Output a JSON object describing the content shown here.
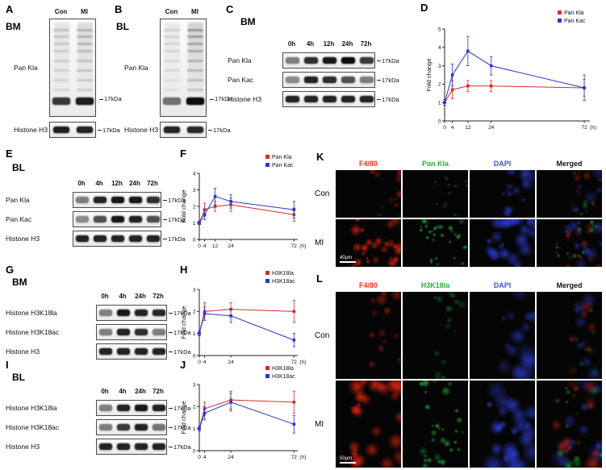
{
  "blots": {
    "A": {
      "letter": "A",
      "tissue": "BM",
      "layout": "tall",
      "lanes": [
        "Con",
        "MI"
      ],
      "smear": [
        0.55,
        0.75
      ],
      "rows": [
        {
          "label": "Pan Kla",
          "marker": "17kDa",
          "bands": [
            0.8,
            0.92
          ]
        },
        {
          "label": "Histone H3",
          "marker": "17kDa",
          "bands": [
            0.92,
            0.9
          ]
        }
      ]
    },
    "B": {
      "letter": "B",
      "tissue": "BL",
      "layout": "tall",
      "lanes": [
        "Con",
        "MI"
      ],
      "smear": [
        0.4,
        1.0
      ],
      "rows": [
        {
          "label": "Pan Kla",
          "marker": "17kDa",
          "bands": [
            0.55,
            1.0
          ]
        },
        {
          "label": "Histone H3",
          "marker": "17kDa",
          "bands": [
            0.9,
            0.88
          ]
        }
      ]
    },
    "C": {
      "letter": "C",
      "tissue": "BM",
      "layout": "stack",
      "lanes": [
        "0h",
        "4h",
        "12h",
        "24h",
        "72h"
      ],
      "rows": [
        {
          "label": "Pan Kla",
          "marker": "17kDa",
          "bands": [
            0.5,
            0.85,
            0.95,
            1,
            0.8
          ]
        },
        {
          "label": "Pan Kac",
          "marker": "17kDa",
          "bands": [
            0.45,
            0.9,
            0.85,
            0.7,
            0.5
          ]
        },
        {
          "label": "Histone H3",
          "marker": "17kDa",
          "bands": [
            0.9,
            0.9,
            0.9,
            0.9,
            0.9
          ]
        }
      ]
    },
    "E": {
      "letter": "E",
      "tissue": "BL",
      "layout": "stack",
      "lanes": [
        "0h",
        "4h",
        "12h",
        "24h",
        "72h"
      ],
      "rows": [
        {
          "label": "Pan Kla",
          "marker": "17kDa",
          "bands": [
            0.5,
            0.9,
            0.95,
            0.95,
            0.85
          ]
        },
        {
          "label": "Pan Kac",
          "marker": "17kDa",
          "bands": [
            0.45,
            0.7,
            0.95,
            0.9,
            0.7
          ]
        },
        {
          "label": "Histone H3",
          "marker": "17kDa",
          "bands": [
            0.9,
            0.9,
            0.9,
            0.9,
            0.9
          ]
        }
      ]
    },
    "G": {
      "letter": "G",
      "tissue": "BM",
      "layout": "stack",
      "lanes": [
        "0h",
        "4h",
        "24h",
        "72h"
      ],
      "rows": [
        {
          "label": "Histone H3K18la",
          "marker": "17kDa",
          "bands": [
            0.5,
            0.95,
            0.9,
            0.88
          ]
        },
        {
          "label": "Histone H3K18ac",
          "marker": "17kDa",
          "bands": [
            0.5,
            0.9,
            0.85,
            0.5
          ]
        },
        {
          "label": "Histone H3",
          "marker": "17kDa",
          "bands": [
            0.9,
            0.9,
            0.9,
            0.9
          ]
        }
      ]
    },
    "I": {
      "letter": "I",
      "tissue": "BL",
      "layout": "stack",
      "lanes": [
        "0h",
        "4h",
        "24h",
        "72h"
      ],
      "rows": [
        {
          "label": "Histone H3K18la",
          "marker": "17kDa",
          "bands": [
            0.5,
            0.9,
            0.95,
            0.9
          ]
        },
        {
          "label": "Histone H3K18ac",
          "marker": "17kDa",
          "bands": [
            0.5,
            0.8,
            0.9,
            0.55
          ]
        },
        {
          "label": "Histone H3",
          "marker": "17kDa",
          "bands": [
            0.9,
            0.9,
            0.9,
            0.9
          ]
        }
      ]
    }
  },
  "chart_data": {
    "D": {
      "letter": "D",
      "type": "line",
      "x": [
        0,
        4,
        12,
        24,
        72
      ],
      "xlabel": "(h)",
      "ylabel": "Fold change",
      "ylim": [
        0,
        5
      ],
      "yticks": [
        0,
        1,
        2,
        3,
        4,
        5
      ],
      "legend_position": "top-right",
      "grid": false,
      "series": [
        {
          "name": "Pan Kla",
          "color": "#d92b2b",
          "values": [
            1,
            1.7,
            1.9,
            1.9,
            1.8
          ],
          "err": [
            0.15,
            0.5,
            0.3,
            0.3,
            0.45
          ]
        },
        {
          "name": "Pan Kac",
          "color": "#2936cf",
          "values": [
            1,
            2.5,
            3.8,
            3.0,
            1.8
          ],
          "err": [
            0.15,
            0.6,
            0.8,
            0.5,
            0.7
          ]
        }
      ]
    },
    "F": {
      "letter": "F",
      "type": "line",
      "x": [
        0,
        4,
        12,
        24,
        72
      ],
      "xlabel": "(h)",
      "ylabel": "Fold change",
      "ylim": [
        0,
        4
      ],
      "yticks": [
        0,
        1,
        2,
        3,
        4
      ],
      "legend_position": "top-right",
      "grid": false,
      "series": [
        {
          "name": "Pan Kla",
          "color": "#d92b2b",
          "values": [
            1,
            1.8,
            2.0,
            2.1,
            1.5
          ],
          "err": [
            0.1,
            0.4,
            0.3,
            0.4,
            0.4
          ]
        },
        {
          "name": "Pan Kac",
          "color": "#2936cf",
          "values": [
            1,
            1.5,
            2.6,
            2.3,
            1.8
          ],
          "err": [
            0.1,
            0.3,
            0.5,
            0.4,
            0.5
          ]
        }
      ]
    },
    "H": {
      "letter": "H",
      "type": "line",
      "x": [
        0,
        4,
        24,
        72
      ],
      "xlabel": "(h)",
      "ylabel": "Fold change",
      "ylim": [
        0,
        3
      ],
      "yticks": [
        0,
        1,
        2,
        3
      ],
      "legend_position": "top-right",
      "grid": false,
      "series": [
        {
          "name": "H3K18la",
          "color": "#d92b2b",
          "values": [
            1,
            2.0,
            2.1,
            2.0
          ],
          "err": [
            0.1,
            0.4,
            0.3,
            0.5
          ]
        },
        {
          "name": "H3K18ac",
          "color": "#2936cf",
          "values": [
            1,
            1.9,
            1.8,
            0.7
          ],
          "err": [
            0.1,
            0.3,
            0.3,
            0.3
          ]
        }
      ]
    },
    "J": {
      "letter": "J",
      "type": "line",
      "x": [
        0,
        4,
        24,
        72
      ],
      "xlabel": "(h)",
      "ylabel": "Fold change",
      "ylim": [
        0,
        3
      ],
      "yticks": [
        0,
        1,
        2,
        3
      ],
      "legend_position": "top-right",
      "grid": false,
      "series": [
        {
          "name": "H3K18la",
          "color": "#d92b2b",
          "values": [
            1,
            1.9,
            2.3,
            2.2
          ],
          "err": [
            0.1,
            0.3,
            0.4,
            0.5
          ]
        },
        {
          "name": "H3K18ac",
          "color": "#2936cf",
          "values": [
            1,
            1.7,
            2.2,
            1.2
          ],
          "err": [
            0.1,
            0.3,
            0.4,
            0.4
          ]
        }
      ]
    }
  },
  "micro": {
    "K": {
      "letter": "K",
      "row_labels": [
        "Con",
        "MI"
      ],
      "scale_bar": "40μm",
      "channels": [
        {
          "label": "F4/80",
          "color": "#e8341c"
        },
        {
          "label": "Pan Kla",
          "color": "#23b33a"
        },
        {
          "label": "DAPI",
          "color": "#4553e0"
        },
        {
          "label": "Merged",
          "color": "#111111"
        }
      ]
    },
    "L": {
      "letter": "L",
      "row_labels": [
        "Con",
        "MI"
      ],
      "scale_bar": "50μm",
      "channels": [
        {
          "label": "F4/80",
          "color": "#e8341c"
        },
        {
          "label": "H3K18la",
          "color": "#23b33a"
        },
        {
          "label": "DAPI",
          "color": "#4553e0"
        },
        {
          "label": "Merged",
          "color": "#111111"
        }
      ]
    }
  }
}
